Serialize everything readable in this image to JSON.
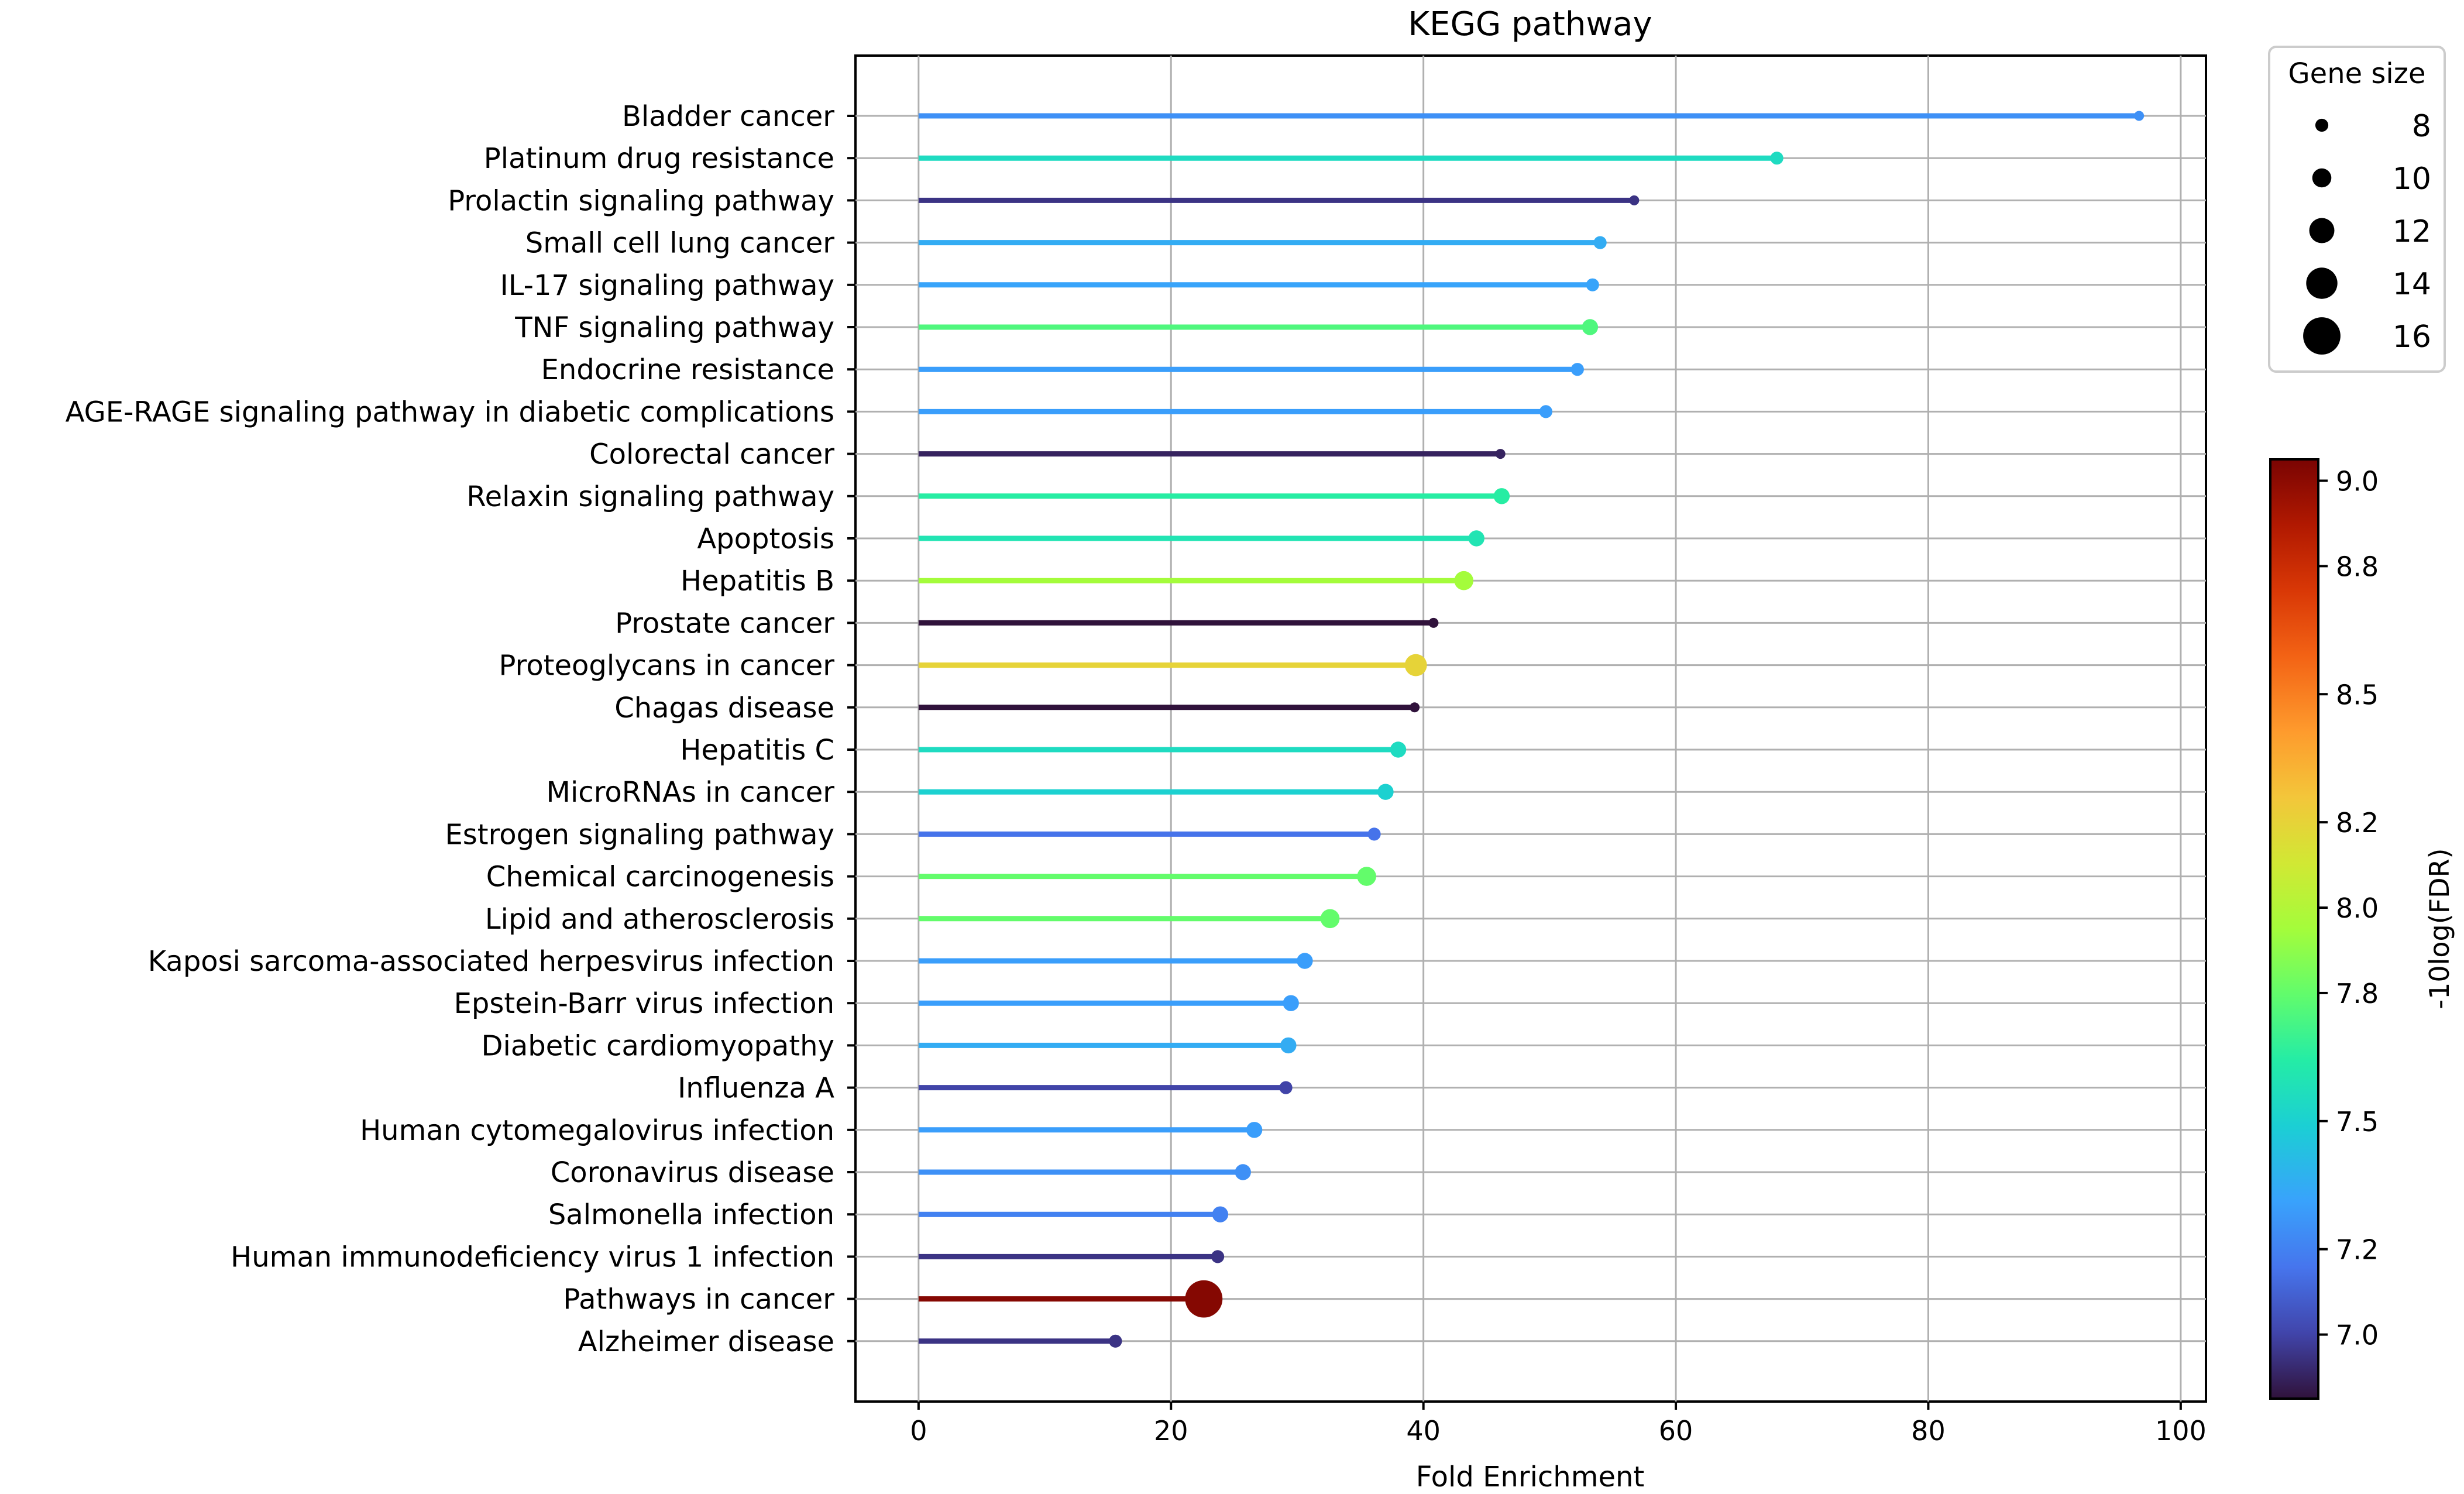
{
  "chart_data": {
    "type": "lollipop",
    "title": "KEGG pathway",
    "xlabel": "Fold Enrichment",
    "ylabel": "",
    "xlim": [
      -5,
      102
    ],
    "xticks": [
      0,
      20,
      40,
      60,
      80,
      100
    ],
    "grid": true,
    "categories": [
      "Bladder cancer",
      "Platinum drug resistance",
      "Prolactin signaling pathway",
      "Small cell lung cancer",
      "IL-17 signaling pathway",
      "TNF signaling pathway",
      "Endocrine resistance",
      "AGE-RAGE signaling pathway in diabetic complications",
      "Colorectal cancer",
      "Relaxin signaling pathway",
      "Apoptosis",
      "Hepatitis B",
      "Prostate cancer",
      "Proteoglycans in cancer",
      "Chagas disease",
      "Hepatitis C",
      "MicroRNAs in cancer",
      "Estrogen signaling pathway",
      "Chemical carcinogenesis",
      "Lipid and atherosclerosis",
      "Kaposi sarcoma-associated herpesvirus infection",
      "Epstein-Barr virus infection",
      "Diabetic cardiomyopathy",
      "Influenza A",
      "Human cytomegalovirus infection",
      "Coronavirus disease",
      "Salmonella infection",
      "Human immunodeficiency virus 1 infection",
      "Pathways in cancer",
      "Alzheimer disease"
    ],
    "fold_enrichment": [
      96.7,
      68.0,
      56.7,
      54.0,
      53.4,
      53.2,
      52.2,
      49.7,
      46.1,
      46.2,
      44.2,
      43.2,
      40.8,
      39.4,
      39.3,
      38.0,
      37.0,
      36.1,
      35.5,
      32.6,
      30.6,
      29.5,
      29.3,
      29.1,
      26.6,
      25.7,
      23.9,
      23.7,
      22.6,
      15.6
    ],
    "gene_size": [
      7,
      8,
      7,
      8,
      8,
      9,
      8,
      8,
      7,
      9,
      9,
      10,
      7,
      11,
      7,
      9,
      9,
      8,
      10,
      10,
      9,
      9,
      9,
      8,
      9,
      9,
      9,
      8,
      16,
      8
    ],
    "neg10log_fdr": [
      7.25,
      7.55,
      6.95,
      7.35,
      7.32,
      7.75,
      7.3,
      7.3,
      6.9,
      7.65,
      7.6,
      7.95,
      6.85,
      8.2,
      6.85,
      7.55,
      7.5,
      7.15,
      7.8,
      7.8,
      7.3,
      7.3,
      7.35,
      7.0,
      7.3,
      7.25,
      7.2,
      6.95,
      9.02,
      6.95
    ],
    "size_legend": {
      "title": "Gene size",
      "values": [
        8,
        10,
        12,
        14,
        16
      ]
    },
    "colorbar": {
      "label": "-10log(FDR)",
      "min": 6.85,
      "max": 9.05,
      "ticks": [
        7.0,
        7.2,
        7.5,
        7.8,
        8.0,
        8.2,
        8.5,
        8.8,
        9.0
      ],
      "tick_labels": [
        "7.0",
        "7.2",
        "7.5",
        "7.8",
        "8.0",
        "8.2",
        "8.5",
        "8.8",
        "9.0"
      ],
      "colormap": "turbo"
    }
  }
}
